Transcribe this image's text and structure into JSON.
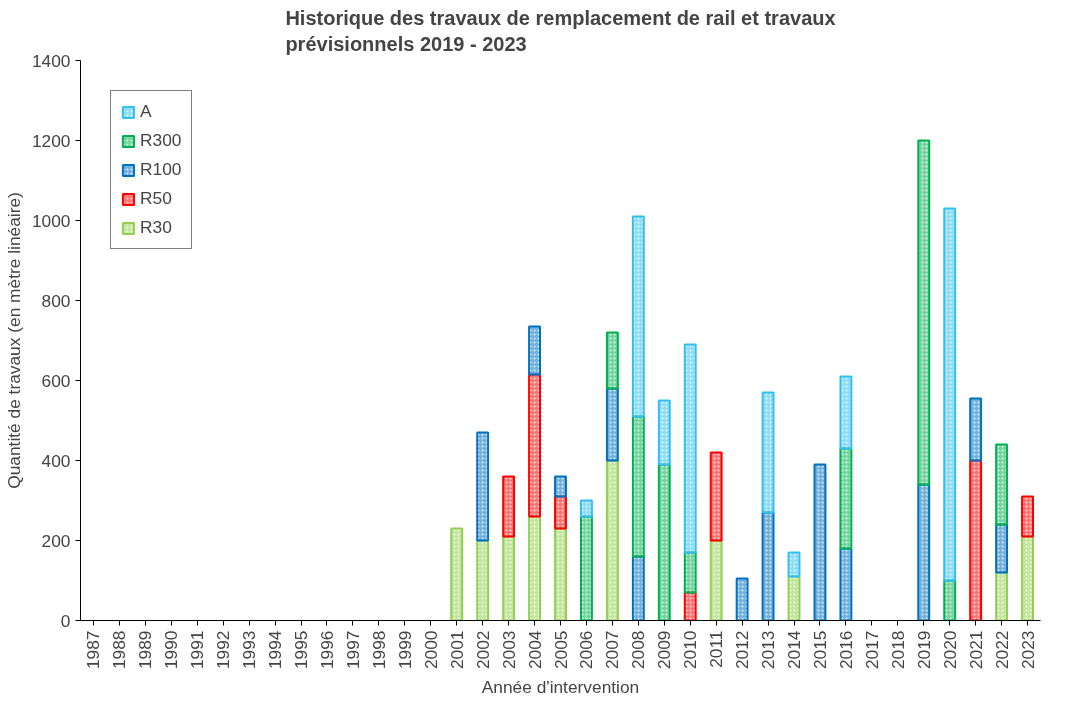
{
  "chart_data": {
    "type": "bar",
    "stacked": true,
    "title": "Historique des travaux de remplacement de rail et travaux\nprévisionnels 2019 - 2023",
    "xlabel": "Année d'intervention",
    "ylabel": "Quantité de travaux (en mètre linéaire)",
    "categories": [
      "1987",
      "1988",
      "1989",
      "1990",
      "1991",
      "1992",
      "1993",
      "1994",
      "1995",
      "1996",
      "1997",
      "1998",
      "1999",
      "2000",
      "2001",
      "2002",
      "2003",
      "2004",
      "2005",
      "2006",
      "2007",
      "2008",
      "2009",
      "2010",
      "2011",
      "2012",
      "2013",
      "2014",
      "2015",
      "2016",
      "2017",
      "2018",
      "2019",
      "2020",
      "2021",
      "2022",
      "2023"
    ],
    "series": [
      {
        "name": "R30",
        "color": "#92d050",
        "values": [
          null,
          null,
          null,
          null,
          null,
          null,
          null,
          null,
          null,
          null,
          null,
          null,
          null,
          null,
          230,
          200,
          210,
          260,
          230,
          null,
          400,
          null,
          null,
          null,
          200,
          null,
          null,
          110,
          null,
          null,
          null,
          null,
          null,
          null,
          null,
          120,
          210
        ]
      },
      {
        "name": "R50",
        "color": "#ff0000",
        "values": [
          null,
          null,
          null,
          null,
          null,
          null,
          null,
          null,
          null,
          null,
          null,
          null,
          null,
          null,
          null,
          null,
          150,
          355,
          80,
          null,
          null,
          null,
          null,
          70,
          220,
          null,
          null,
          null,
          null,
          null,
          null,
          null,
          null,
          null,
          400,
          null,
          100
        ]
      },
      {
        "name": "R100",
        "color": "#0070c0",
        "values": [
          null,
          null,
          null,
          null,
          null,
          null,
          null,
          null,
          null,
          null,
          null,
          null,
          null,
          null,
          null,
          270,
          null,
          120,
          50,
          null,
          180,
          160,
          null,
          null,
          null,
          105,
          270,
          null,
          390,
          180,
          null,
          null,
          340,
          null,
          155,
          120,
          null
        ]
      },
      {
        "name": "R300",
        "color": "#00b050",
        "values": [
          null,
          null,
          null,
          null,
          null,
          null,
          null,
          null,
          null,
          null,
          null,
          null,
          null,
          null,
          null,
          null,
          null,
          null,
          null,
          260,
          140,
          350,
          390,
          100,
          null,
          null,
          null,
          null,
          null,
          250,
          null,
          null,
          860,
          100,
          null,
          200,
          null
        ]
      },
      {
        "name": "A",
        "color": "#33bff0",
        "values": [
          null,
          null,
          null,
          null,
          null,
          null,
          null,
          null,
          null,
          null,
          null,
          null,
          null,
          null,
          null,
          null,
          null,
          null,
          null,
          40,
          null,
          500,
          160,
          520,
          null,
          null,
          300,
          60,
          null,
          180,
          null,
          null,
          null,
          930,
          null,
          null,
          null
        ]
      }
    ],
    "ylim": [
      0,
      1400
    ],
    "yticks": [
      0,
      200,
      400,
      600,
      800,
      1000,
      1200,
      1400
    ],
    "grid": false,
    "legend": "top left"
  }
}
